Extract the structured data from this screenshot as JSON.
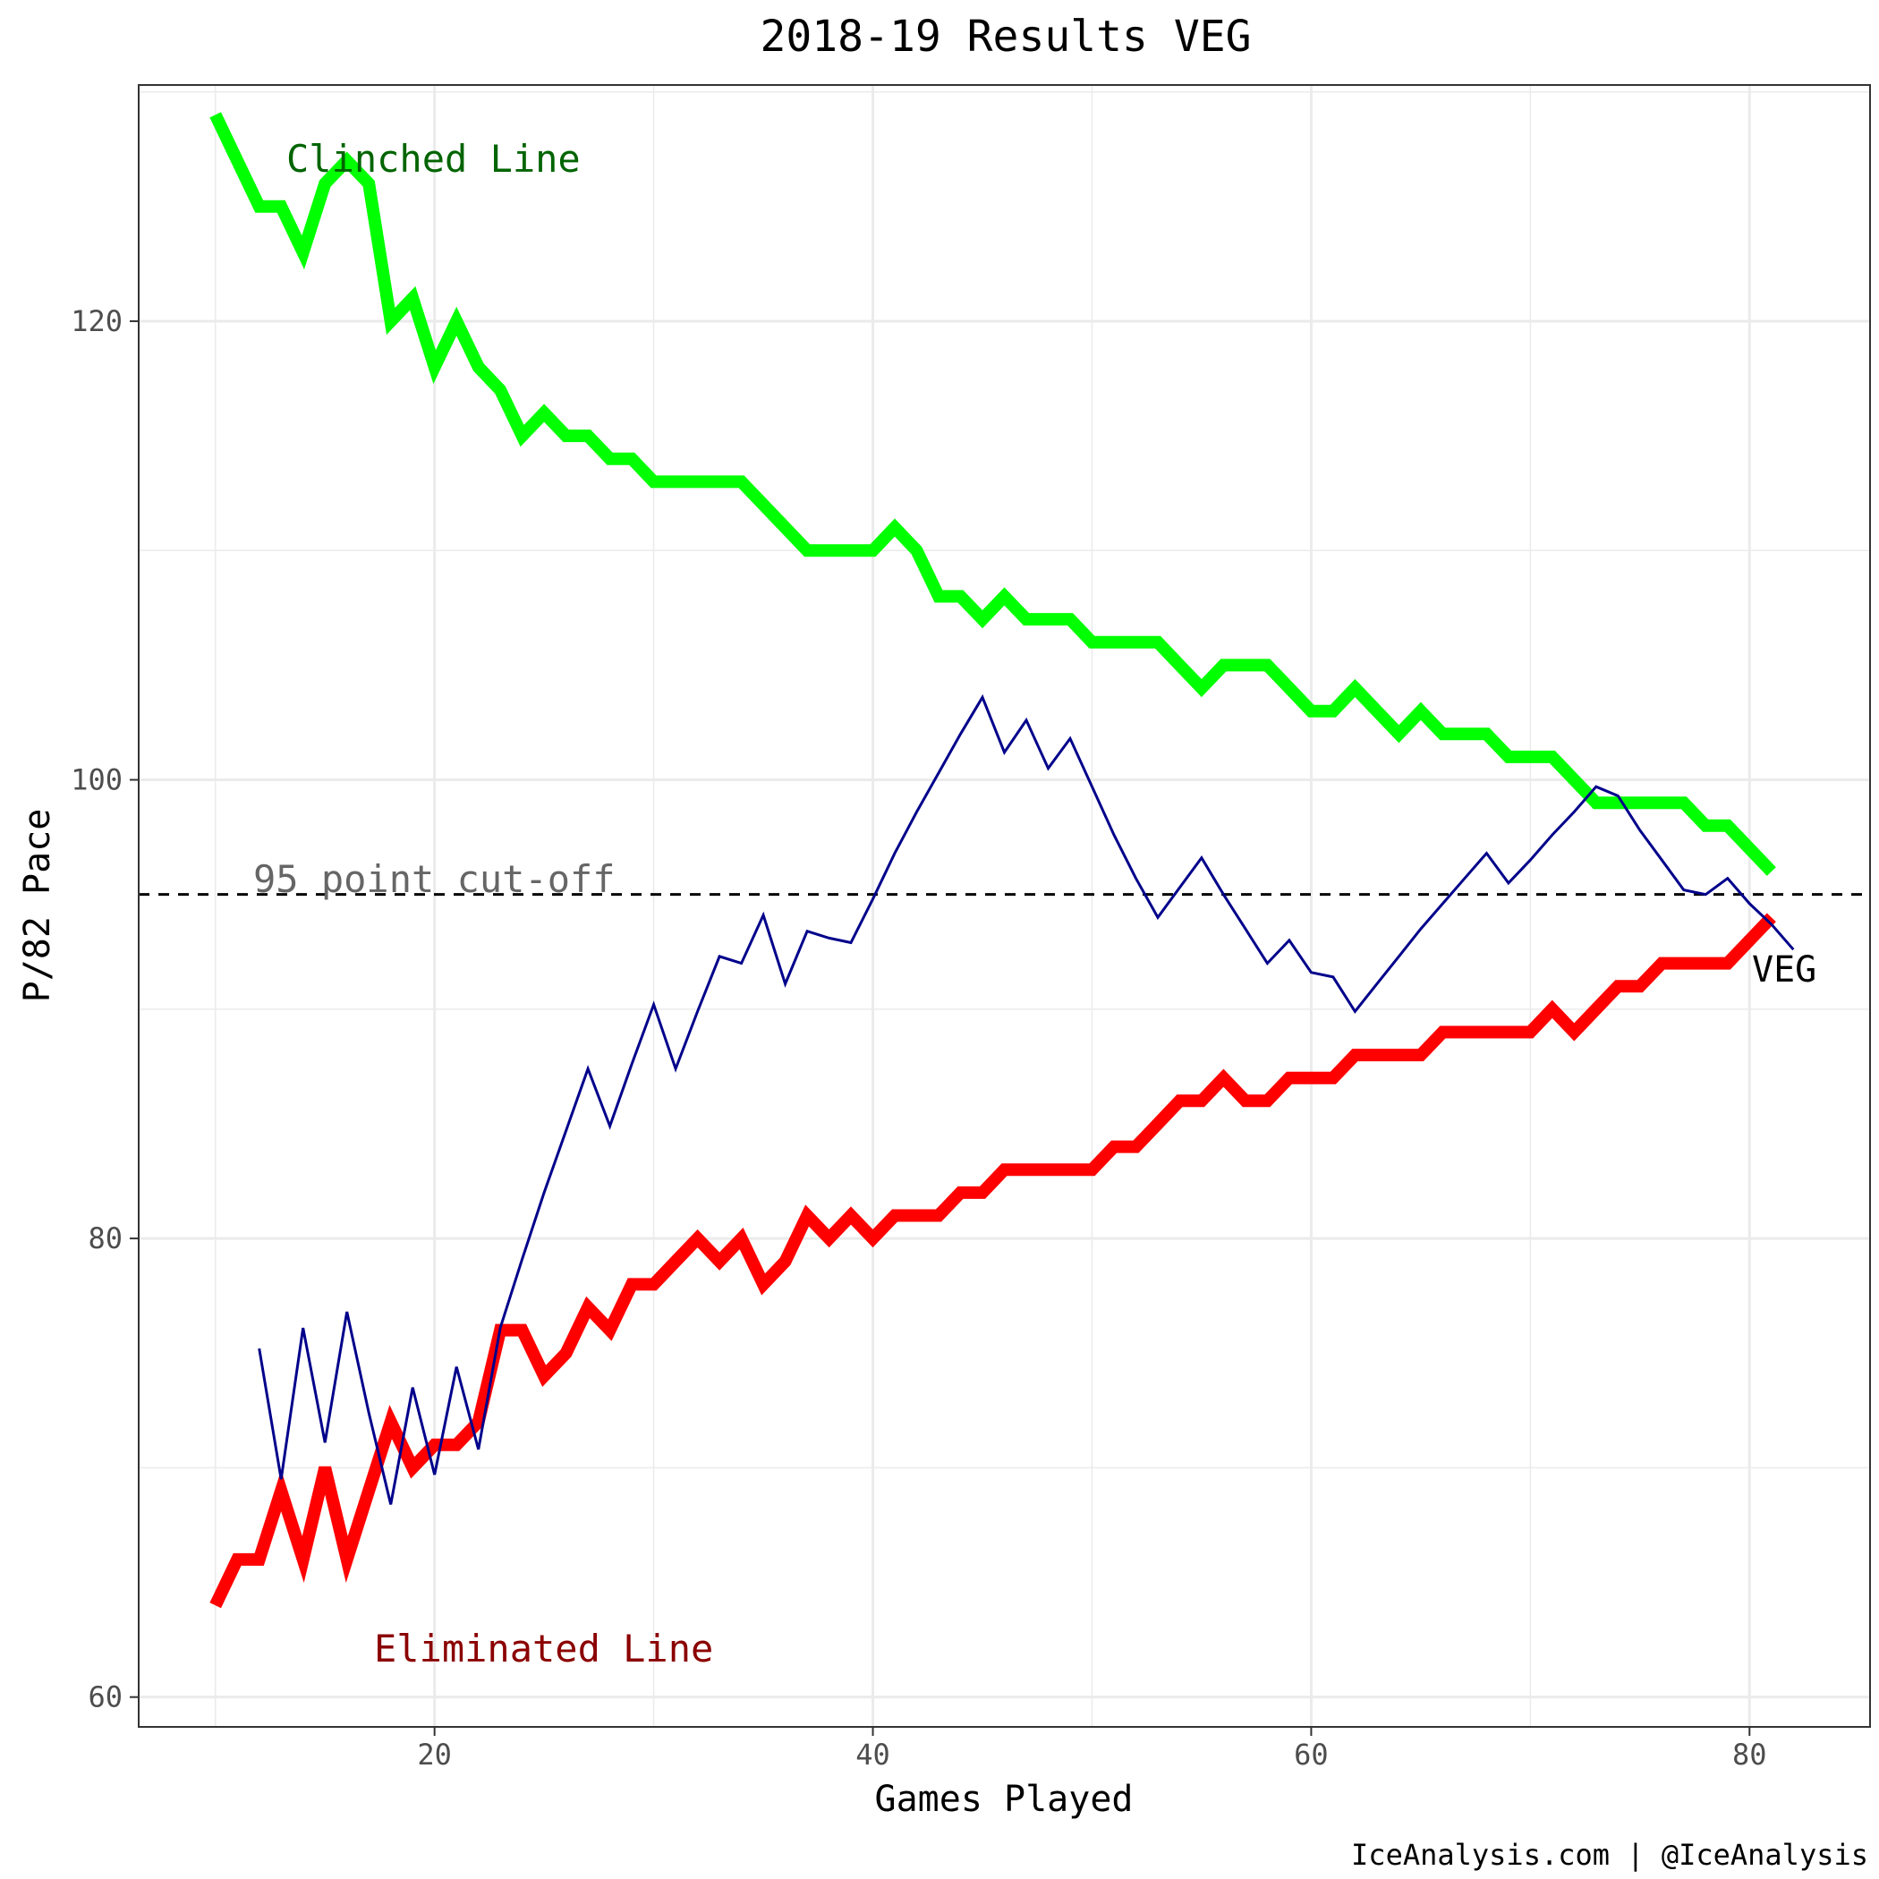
{
  "chart_data": {
    "type": "line",
    "title": "2018-19 Results VEG",
    "xlabel": "Games Played",
    "ylabel": "P/82 Pace",
    "xlim": [
      6.5,
      85.5
    ],
    "ylim": [
      58.7,
      130.3
    ],
    "grid": true,
    "x_ticks": [
      20,
      40,
      60,
      80
    ],
    "x_tick_labels": [
      "20",
      "40",
      "60",
      "80"
    ],
    "y_ticks": [
      60,
      80,
      100,
      120
    ],
    "y_tick_labels": [
      "60",
      "80",
      "100",
      "120"
    ],
    "series": [
      {
        "key": "clinched",
        "color": "#00ff00",
        "x": [
          10,
          11,
          12,
          13,
          14,
          15,
          16,
          17,
          18,
          19,
          20,
          21,
          22,
          23,
          24,
          25,
          26,
          27,
          28,
          29,
          30,
          31,
          32,
          33,
          34,
          35,
          36,
          37,
          38,
          39,
          40,
          41,
          42,
          43,
          44,
          45,
          46,
          47,
          48,
          49,
          50,
          51,
          52,
          53,
          54,
          55,
          56,
          57,
          58,
          59,
          60,
          61,
          62,
          63,
          64,
          65,
          66,
          67,
          68,
          69,
          70,
          71,
          72,
          73,
          74,
          75,
          76,
          77,
          78,
          79,
          80,
          81
        ],
        "values": [
          129,
          127,
          125,
          125,
          123,
          126,
          127,
          126,
          120,
          121,
          118,
          120,
          118,
          117,
          115,
          116,
          115,
          115,
          114,
          114,
          113,
          113,
          113,
          113,
          113,
          112,
          111,
          110,
          110,
          110,
          110,
          111,
          110,
          108,
          108,
          107,
          108,
          107,
          107,
          107,
          106,
          106,
          106,
          106,
          105,
          104,
          105,
          105,
          105,
          104,
          103,
          103,
          104,
          103,
          102,
          103,
          102,
          102,
          102,
          101,
          101,
          101,
          100,
          99,
          99,
          99,
          99,
          99,
          98,
          98,
          97,
          96
        ]
      },
      {
        "key": "eliminated",
        "color": "#ff0000",
        "x": [
          10,
          11,
          12,
          13,
          14,
          15,
          16,
          17,
          18,
          19,
          20,
          21,
          22,
          23,
          24,
          25,
          26,
          27,
          28,
          29,
          30,
          31,
          32,
          33,
          34,
          35,
          36,
          37,
          38,
          39,
          40,
          41,
          42,
          43,
          44,
          45,
          46,
          47,
          48,
          49,
          50,
          51,
          52,
          53,
          54,
          55,
          56,
          57,
          58,
          59,
          60,
          61,
          62,
          63,
          64,
          65,
          66,
          67,
          68,
          69,
          70,
          71,
          72,
          73,
          74,
          75,
          76,
          77,
          78,
          79,
          80,
          81
        ],
        "values": [
          64,
          66,
          66,
          69,
          66,
          70,
          66,
          69,
          72,
          70,
          71,
          71,
          72,
          76,
          76,
          74,
          75,
          77,
          76,
          78,
          78,
          79,
          80,
          79,
          80,
          78,
          79,
          81,
          80,
          81,
          80,
          81,
          81,
          81,
          82,
          82,
          83,
          83,
          83,
          83,
          83,
          84,
          84,
          85,
          86,
          86,
          87,
          86,
          86,
          87,
          87,
          87,
          88,
          88,
          88,
          88,
          89,
          89,
          89,
          89,
          89,
          90,
          89,
          90,
          91,
          91,
          92,
          92,
          92,
          92,
          93,
          94
        ]
      },
      {
        "key": "veg",
        "color": "#00008b",
        "label": "VEG",
        "x": [
          12,
          13,
          14,
          15,
          16,
          17,
          18,
          19,
          20,
          21,
          22,
          23,
          24,
          25,
          26,
          27,
          28,
          29,
          30,
          31,
          32,
          33,
          34,
          35,
          36,
          37,
          38,
          39,
          40,
          41,
          42,
          43,
          44,
          45,
          46,
          47,
          48,
          49,
          50,
          51,
          52,
          53,
          54,
          55,
          56,
          57,
          58,
          59,
          60,
          61,
          62,
          63,
          64,
          65,
          66,
          67,
          68,
          69,
          70,
          71,
          72,
          73,
          74,
          75,
          76,
          77,
          78,
          79,
          80,
          81,
          82
        ],
        "values": [
          75.2,
          69.5,
          76.1,
          71.1,
          76.8,
          72.4,
          68.4,
          73.5,
          69.7,
          74.4,
          70.8,
          76.1,
          79.1,
          82.0,
          84.7,
          87.4,
          84.9,
          87.6,
          90.2,
          87.4,
          89.9,
          92.3,
          92.0,
          94.1,
          91.1,
          93.4,
          93.1,
          92.9,
          94.8,
          96.8,
          98.6,
          100.3,
          102.0,
          103.6,
          101.2,
          102.6,
          100.5,
          101.8,
          99.7,
          97.6,
          95.7,
          94.0,
          95.3,
          96.6,
          95.0,
          93.5,
          92.0,
          93.0,
          91.6,
          91.4,
          89.9,
          91.1,
          92.3,
          93.5,
          94.6,
          95.7,
          96.8,
          95.5,
          96.5,
          97.6,
          98.6,
          99.7,
          99.3,
          97.8,
          96.5,
          95.2,
          95.0,
          95.7,
          94.6,
          93.7,
          92.6
        ]
      }
    ],
    "reference_line": {
      "y": 95,
      "label": "95 point cut-off"
    },
    "annotations": {
      "clinched_label": "Clinched Line",
      "eliminated_label": "Eliminated Line"
    },
    "credit": "IceAnalysis.com | @IceAnalysis"
  },
  "colors": {
    "clinched": "#00ff00",
    "clinched_text": "#006400",
    "eliminated": "#ff0000",
    "eliminated_text": "#8b0000",
    "veg": "#00008b",
    "grid": "#ebebeb",
    "annotation_text": "#666666"
  }
}
